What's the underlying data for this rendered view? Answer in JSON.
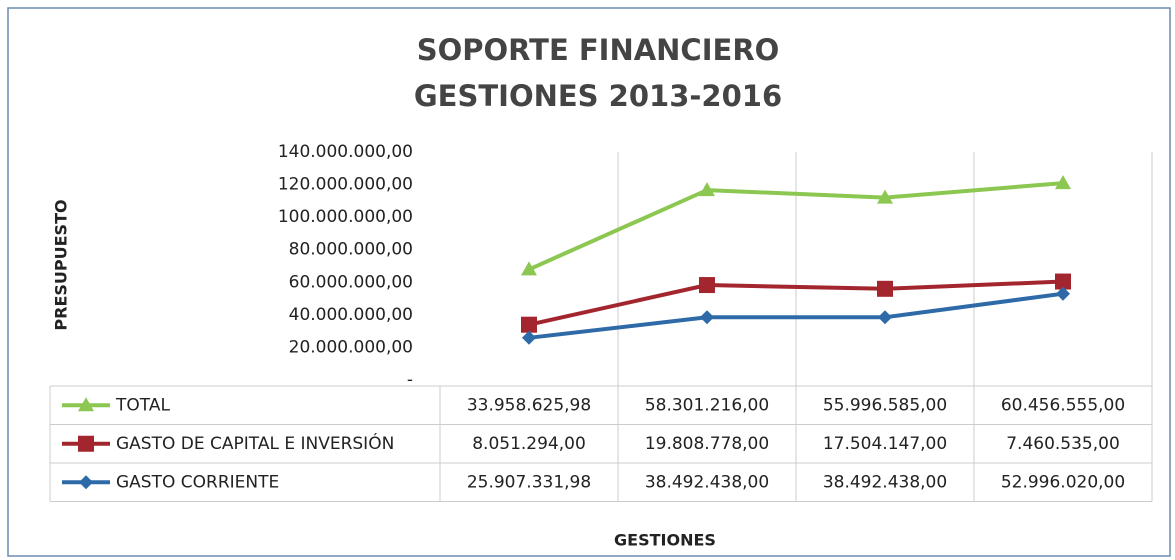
{
  "chart_data": {
    "type": "line",
    "stacked": true,
    "title": [
      "SOPORTE FINANCIERO",
      "GESTIONES 2013-2016"
    ],
    "y_label": "PRESUPUESTO",
    "x_label": "GESTIONES",
    "categories": [
      null,
      null,
      null,
      null
    ],
    "ylim": [
      0,
      140000000
    ],
    "yticks": [
      {
        "value": 0,
        "label": "-"
      },
      {
        "value": 20000000,
        "label": "20.000.000,00"
      },
      {
        "value": 40000000,
        "label": "40.000.000,00"
      },
      {
        "value": 60000000,
        "label": "60.000.000,00"
      },
      {
        "value": 80000000,
        "label": "80.000.000,00"
      },
      {
        "value": 100000000,
        "label": "100.000.000,00"
      },
      {
        "value": 120000000,
        "label": "120.000.000,00"
      },
      {
        "value": 140000000,
        "label": "140.000.000,00"
      }
    ],
    "grid": false,
    "series": [
      {
        "name": "TOTAL",
        "color": "#8cc751",
        "marker": "triangle",
        "values": [
          33958625.98,
          58301216.0,
          55996585.0,
          60456555.0
        ],
        "value_labels": [
          "33.958.625,98",
          "58.301.216,00",
          "55.996.585,00",
          "60.456.555,00"
        ]
      },
      {
        "name": "GASTO DE CAPITAL E INVERSIÓN",
        "color": "#a3262f",
        "marker": "square",
        "values": [
          8051294.0,
          19808778.0,
          17504147.0,
          7460535.0
        ],
        "value_labels": [
          "8.051.294,00",
          "19.808.778,00",
          "17.504.147,00",
          "7.460.535,00"
        ]
      },
      {
        "name": "GASTO CORRIENTE",
        "color": "#2e6aa8",
        "marker": "diamond",
        "values": [
          25907331.98,
          38492438.0,
          38492438.0,
          52996020.0
        ],
        "value_labels": [
          "25.907.331,98",
          "38.492.438,00",
          "38.492.438,00",
          "52.996.020,00"
        ]
      }
    ]
  }
}
